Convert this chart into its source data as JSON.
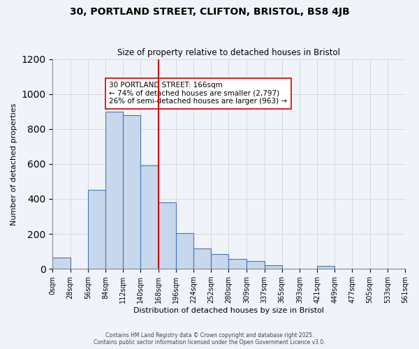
{
  "title": "30, PORTLAND STREET, CLIFTON, BRISTOL, BS8 4JB",
  "subtitle": "Size of property relative to detached houses in Bristol",
  "xlabel": "Distribution of detached houses by size in Bristol",
  "ylabel": "Number of detached properties",
  "bin_edges": [
    0,
    28,
    56,
    84,
    112,
    140,
    168,
    196,
    224,
    252,
    280,
    309,
    337,
    365,
    393,
    421,
    449,
    477,
    505,
    533,
    561
  ],
  "bin_counts": [
    65,
    0,
    450,
    900,
    880,
    590,
    380,
    205,
    115,
    85,
    55,
    45,
    20,
    0,
    0,
    15,
    0,
    0,
    0,
    0
  ],
  "tick_labels": [
    "0sqm",
    "28sqm",
    "56sqm",
    "84sqm",
    "112sqm",
    "140sqm",
    "168sqm",
    "196sqm",
    "224sqm",
    "252sqm",
    "280sqm",
    "309sqm",
    "337sqm",
    "365sqm",
    "393sqm",
    "421sqm",
    "449sqm",
    "477sqm",
    "505sqm",
    "533sqm",
    "561sqm"
  ],
  "bar_color": "#c8d8ec",
  "bar_edge_color": "#4472c4",
  "vline_x": 168,
  "vline_color": "#cc0000",
  "annotation_text": "30 PORTLAND STREET: 166sqm\n← 74% of detached houses are smaller (2,797)\n26% of semi-detached houses are larger (963) →",
  "annotation_box_color": "#ffffff",
  "annotation_box_edge": "#cc0000",
  "ylim": [
    0,
    1200
  ],
  "yticks": [
    0,
    200,
    400,
    600,
    800,
    1000,
    1200
  ],
  "grid_color": "#cccccc",
  "background_color": "#f0f4fa",
  "footer_line1": "Contains HM Land Registry data © Crown copyright and database right 2025.",
  "footer_line2": "Contains public sector information licensed under the Open Government Licence v3.0."
}
